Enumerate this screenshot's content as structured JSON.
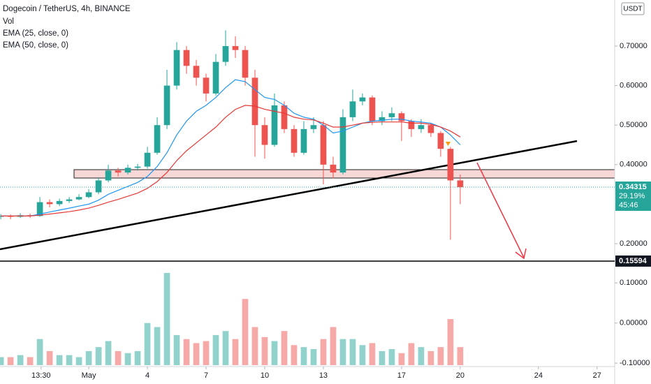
{
  "chart_data": {
    "type": "candlestick",
    "title": "Dogecoin / TetherUS, 4h, BINANCE",
    "currency": "USDT",
    "x": [
      -3.5,
      -3,
      -2.5,
      -2,
      -1.5,
      -1,
      -0.5,
      0,
      0.5,
      1,
      1.5,
      2,
      2.5,
      3,
      3.5,
      4,
      4.5,
      5,
      5.5,
      6,
      6.5,
      7,
      7.5,
      8,
      8.5,
      9,
      9.5,
      10,
      10.5,
      11,
      11.5,
      12,
      12.5,
      13,
      13.5,
      14,
      14.5,
      15,
      15.5,
      16,
      16.5,
      17,
      17.5,
      18,
      18.5,
      19,
      19.5,
      20
    ],
    "open": [
      0.268,
      0.27,
      0.268,
      0.272,
      0.27,
      0.305,
      0.3,
      0.308,
      0.312,
      0.318,
      0.33,
      0.36,
      0.385,
      0.38,
      0.392,
      0.395,
      0.43,
      0.5,
      0.6,
      0.69,
      0.65,
      0.62,
      0.58,
      0.66,
      0.7,
      0.69,
      0.62,
      0.5,
      0.45,
      0.55,
      0.49,
      0.43,
      0.49,
      0.5,
      0.4,
      0.38,
      0.52,
      0.56,
      0.57,
      0.51,
      0.52,
      0.53,
      0.51,
      0.49,
      0.5,
      0.48,
      0.44,
      0.36
    ],
    "high": [
      0.275,
      0.274,
      0.277,
      0.276,
      0.318,
      0.312,
      0.314,
      0.318,
      0.325,
      0.338,
      0.368,
      0.4,
      0.392,
      0.4,
      0.402,
      0.445,
      0.52,
      0.64,
      0.71,
      0.7,
      0.665,
      0.63,
      0.68,
      0.74,
      0.725,
      0.7,
      0.64,
      0.52,
      0.58,
      0.56,
      0.5,
      0.51,
      0.52,
      0.51,
      0.42,
      0.54,
      0.59,
      0.58,
      0.575,
      0.535,
      0.545,
      0.535,
      0.515,
      0.515,
      0.505,
      0.485,
      0.445,
      0.375
    ],
    "low": [
      0.262,
      0.262,
      0.265,
      0.265,
      0.268,
      0.292,
      0.295,
      0.303,
      0.31,
      0.315,
      0.325,
      0.355,
      0.37,
      0.375,
      0.385,
      0.39,
      0.425,
      0.49,
      0.59,
      0.63,
      0.6,
      0.56,
      0.575,
      0.65,
      0.67,
      0.6,
      0.42,
      0.415,
      0.445,
      0.48,
      0.42,
      0.425,
      0.48,
      0.35,
      0.365,
      0.375,
      0.51,
      0.55,
      0.5,
      0.5,
      0.51,
      0.46,
      0.47,
      0.48,
      0.47,
      0.42,
      0.21,
      0.3
    ],
    "close": [
      0.27,
      0.268,
      0.272,
      0.27,
      0.305,
      0.3,
      0.308,
      0.312,
      0.318,
      0.33,
      0.36,
      0.385,
      0.38,
      0.392,
      0.395,
      0.43,
      0.5,
      0.6,
      0.69,
      0.65,
      0.62,
      0.58,
      0.66,
      0.7,
      0.69,
      0.62,
      0.5,
      0.45,
      0.55,
      0.49,
      0.43,
      0.49,
      0.5,
      0.4,
      0.38,
      0.52,
      0.56,
      0.57,
      0.51,
      0.52,
      0.53,
      0.51,
      0.49,
      0.5,
      0.48,
      0.44,
      0.36,
      0.343
    ],
    "up_color": "#26a69a",
    "down_color": "#ef5350",
    "series": [
      {
        "name": "EMA (25, close, 0)",
        "color": "#2196f3",
        "values": [
          0.27,
          0.27,
          0.27,
          0.27,
          0.275,
          0.28,
          0.285,
          0.29,
          0.295,
          0.3,
          0.31,
          0.325,
          0.335,
          0.345,
          0.355,
          0.37,
          0.395,
          0.43,
          0.475,
          0.51,
          0.535,
          0.55,
          0.57,
          0.595,
          0.615,
          0.61,
          0.59,
          0.57,
          0.565,
          0.55,
          0.53,
          0.52,
          0.515,
          0.5,
          0.48,
          0.485,
          0.495,
          0.505,
          0.51,
          0.512,
          0.515,
          0.515,
          0.51,
          0.508,
          0.505,
          0.495,
          0.475,
          0.45
        ]
      },
      {
        "name": "EMA (50, close, 0)",
        "color": "#e53935",
        "values": [
          0.27,
          0.27,
          0.27,
          0.27,
          0.272,
          0.275,
          0.278,
          0.281,
          0.285,
          0.29,
          0.297,
          0.305,
          0.312,
          0.32,
          0.328,
          0.34,
          0.357,
          0.38,
          0.41,
          0.435,
          0.455,
          0.475,
          0.495,
          0.52,
          0.54,
          0.55,
          0.548,
          0.54,
          0.535,
          0.53,
          0.52,
          0.515,
          0.513,
          0.505,
          0.495,
          0.495,
          0.5,
          0.505,
          0.507,
          0.508,
          0.508,
          0.508,
          0.505,
          0.505,
          0.502,
          0.495,
          0.485,
          0.47
        ]
      }
    ],
    "xlim": [
      -3.54,
      27.9
    ],
    "xticks": [
      {
        "value": -1.44,
        "label": "13:30"
      },
      {
        "value": 1,
        "label": "May"
      },
      4,
      7,
      10,
      13,
      17,
      20,
      24,
      27
    ],
    "ylim": [
      0.1364,
      0.8166
    ],
    "yticks": [
      {
        "value": 0.7,
        "label": "0.70000"
      },
      {
        "value": 0.6,
        "label": "0.60000"
      },
      {
        "value": 0.5,
        "label": "0.50000"
      },
      {
        "value": 0.4,
        "label": "0.40000"
      },
      {
        "value": 0.2,
        "label": "0.20000"
      }
    ],
    "grid": false,
    "last_price": {
      "value": 0.34315,
      "label": "0.34315",
      "change": "29.19%",
      "countdown": "45:46"
    },
    "level": {
      "value": 0.15594,
      "label": "0.15594"
    },
    "volume": {
      "name": "Vol",
      "values": [
        -0.085,
        -0.085,
        -0.08,
        -0.085,
        -0.04,
        -0.07,
        -0.08,
        -0.08,
        -0.085,
        -0.07,
        -0.06,
        -0.045,
        -0.07,
        -0.075,
        -0.07,
        0,
        -0.01,
        0.125,
        -0.03,
        -0.04,
        -0.05,
        -0.045,
        -0.03,
        -0.02,
        -0.04,
        0.06,
        -0.01,
        -0.035,
        -0.045,
        -0.02,
        -0.055,
        -0.06,
        -0.065,
        -0.04,
        -0.01,
        -0.04,
        -0.04,
        -0.055,
        -0.05,
        -0.07,
        -0.065,
        -0.075,
        -0.05,
        -0.06,
        -0.07,
        -0.06,
        0.01,
        -0.06
      ],
      "ylim": [
        -0.105,
        0.13
      ],
      "yticks": [
        {
          "value": 0.1,
          "label": "0.10000"
        },
        {
          "value": 0,
          "label": "0.00000"
        },
        {
          "value": -0.1,
          "label": "-0.10000"
        }
      ]
    }
  }
}
